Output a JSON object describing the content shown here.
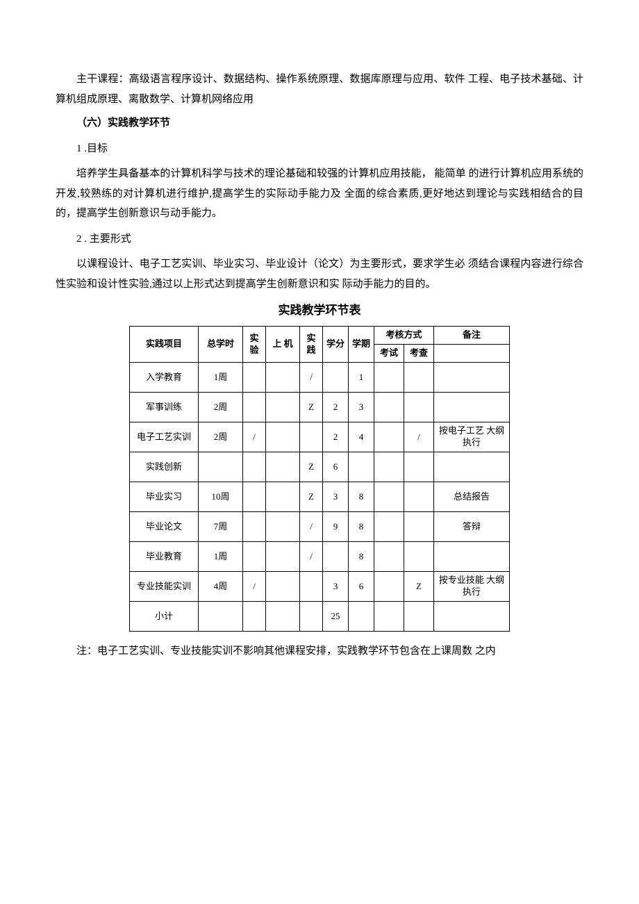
{
  "paragraphs": {
    "intro": "主干课程：高级语言程序设计、数据结构、操作系统原理、数据库原理与应用、软件  工程、电子技术基础、计算机组成原理、离散数学、计算机网络应用",
    "heading6": "（六）实践教学环节",
    "goal_num": "1 .目标",
    "goal_text": "培养学生具备基本的计算机科学与技术的理论基础和较强的计算机应用技能， 能简单  的进行计算机应用系统的开发,较熟练的对计算机进行维护,提高学生的实际动手能力及      全面的综合素质,更好地达到理论与实践相结合的目的，提高学生创新意识与动手能力。",
    "form_num": "2  . 主要形式",
    "form_text": "以课程设计、电子工艺实训、毕业实习、毕业设计（论文）为主要形式，要求学生必  须结合课程内容进行综合性实验和设计性实验,通过以上形式达到提高学生创新意识和实 际动手能力的目的。"
  },
  "table": {
    "title": "实践教学环节表",
    "headers": {
      "project": "实践项目",
      "total_hours": "总学时",
      "experiment": "实验",
      "computer": "上 机",
      "practice": "实践",
      "credit": "学分",
      "term": "学期",
      "assess": "考核方式",
      "exam": "考试",
      "check": "考查",
      "remark": "备注"
    },
    "rows": [
      {
        "project": "入学教育",
        "hours": "1周",
        "exp": "",
        "comp": "",
        "prac": "/",
        "credit": "",
        "term": "1",
        "exam": "",
        "check": "",
        "remark": ""
      },
      {
        "project": "军事训练",
        "hours": "2周",
        "exp": "",
        "comp": "",
        "prac": "Z",
        "credit": "2",
        "term": "3",
        "exam": "",
        "check": "",
        "remark": ""
      },
      {
        "project": "电子工艺实训",
        "hours": "2周",
        "exp": "/",
        "comp": "",
        "prac": "",
        "credit": "2",
        "term": "4",
        "exam": "",
        "check": "/",
        "remark": "按电子工艺 大纲执行"
      },
      {
        "project": "实践创新",
        "hours": "",
        "exp": "",
        "comp": "",
        "prac": "Z",
        "credit": "6",
        "term": "",
        "exam": "",
        "check": "",
        "remark": ""
      },
      {
        "project": "毕业实习",
        "hours": "10周",
        "exp": "",
        "comp": "",
        "prac": "Z",
        "credit": "3",
        "term": "8",
        "exam": "",
        "check": "",
        "remark": "总结报告"
      },
      {
        "project": "毕业论文",
        "hours": "7周",
        "exp": "",
        "comp": "",
        "prac": "/",
        "credit": "9",
        "term": "8",
        "exam": "",
        "check": "",
        "remark": "答辩"
      },
      {
        "project": "毕业教育",
        "hours": "1周",
        "exp": "",
        "comp": "",
        "prac": "/",
        "credit": "",
        "term": "8",
        "exam": "",
        "check": "",
        "remark": ""
      },
      {
        "project": "专业技能实训",
        "hours": "4周",
        "exp": "/",
        "comp": "",
        "prac": "",
        "credit": "3",
        "term": "6",
        "exam": "",
        "check": "Z",
        "remark": "按专业技能 大纲执行"
      },
      {
        "project": "小计",
        "hours": "",
        "exp": "",
        "comp": "",
        "prac": "",
        "credit": "25",
        "term": "",
        "exam": "",
        "check": "",
        "remark": ""
      }
    ]
  },
  "note": "注：电子工艺实训、专业技能实训不影响其他课程安排，实践教学环节包含在上课周数 之内"
}
